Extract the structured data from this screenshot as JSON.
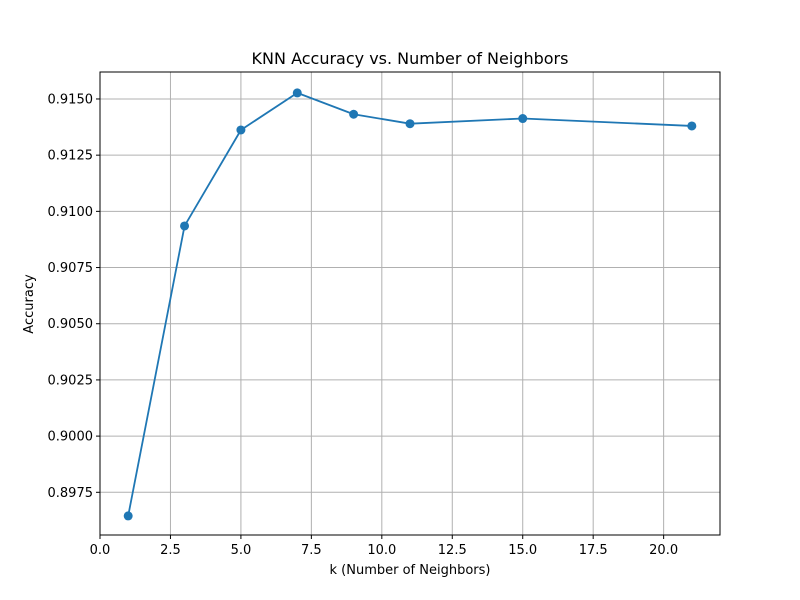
{
  "chart_data": {
    "type": "line",
    "title": "KNN Accuracy vs. Number of Neighbors",
    "xlabel": "k (Number of Neighbors)",
    "ylabel": "Accuracy",
    "xlim": [
      0.0,
      22.0
    ],
    "ylim": [
      0.8956,
      0.9162
    ],
    "x_ticks": [
      0.0,
      2.5,
      5.0,
      7.5,
      10.0,
      12.5,
      15.0,
      17.5,
      20.0
    ],
    "x_tick_labels": [
      "0.0",
      "2.5",
      "5.0",
      "7.5",
      "10.0",
      "12.5",
      "15.0",
      "17.5",
      "20.0"
    ],
    "y_ticks": [
      0.8975,
      0.9,
      0.9025,
      0.905,
      0.9075,
      0.91,
      0.9125,
      0.915
    ],
    "y_tick_labels": [
      "0.8975",
      "0.9000",
      "0.9025",
      "0.9050",
      "0.9075",
      "0.9100",
      "0.9125",
      "0.9150"
    ],
    "grid": true,
    "series": [
      {
        "x": [
          1,
          3,
          5,
          7,
          9,
          11,
          15,
          21
        ],
        "y": [
          0.89645,
          0.90935,
          0.91362,
          0.91527,
          0.91432,
          0.9139,
          0.91413,
          0.9138
        ],
        "color": "#1f77b4",
        "marker": "circle"
      }
    ]
  }
}
